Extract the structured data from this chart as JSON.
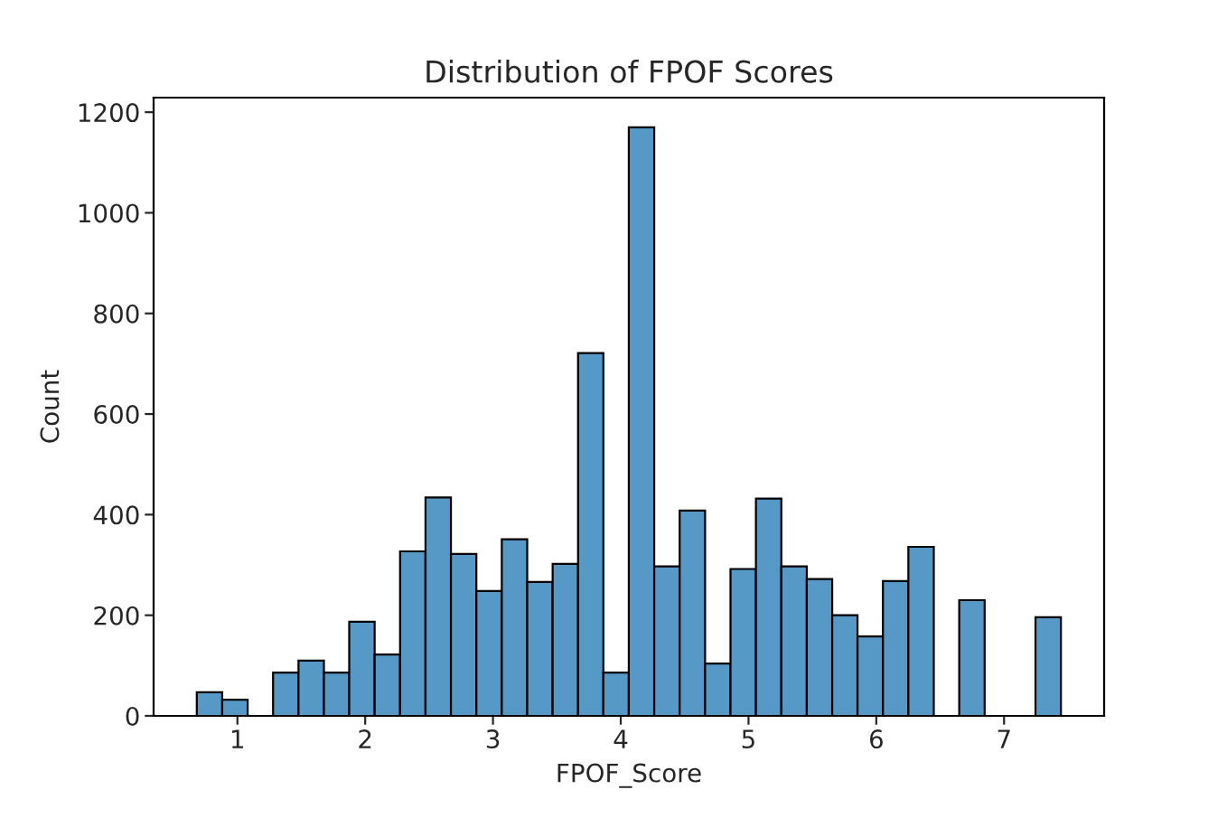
{
  "chart_data": {
    "type": "histogram",
    "title": "Distribution of FPOF Scores",
    "xlabel": "FPOF_Score",
    "ylabel": "Count",
    "bins": [
      0.682,
      0.881,
      1.08,
      1.279,
      1.478,
      1.677,
      1.875,
      2.074,
      2.273,
      2.472,
      2.671,
      2.87,
      3.069,
      3.268,
      3.467,
      3.666,
      3.864,
      4.063,
      4.262,
      4.461,
      4.66,
      4.859,
      5.058,
      5.257,
      5.456,
      5.655,
      5.853,
      6.052,
      6.251,
      6.45,
      6.649,
      6.848,
      7.047,
      7.246,
      7.445
    ],
    "values": [
      47,
      32,
      0,
      86,
      110,
      86,
      187,
      122,
      327,
      434,
      322,
      248,
      351,
      266,
      302,
      721,
      86,
      1170,
      297,
      408,
      104,
      292,
      432,
      297,
      272,
      200,
      158,
      268,
      336,
      0,
      230,
      0,
      0,
      196
    ],
    "color": "#5799c6",
    "xlim": [
      0.344,
      7.783
    ],
    "ylim": [
      0,
      1229
    ],
    "xticks": [
      1,
      2,
      3,
      4,
      5,
      6,
      7
    ],
    "yticks": [
      0,
      200,
      400,
      600,
      800,
      1000,
      1200
    ],
    "grid": false
  }
}
